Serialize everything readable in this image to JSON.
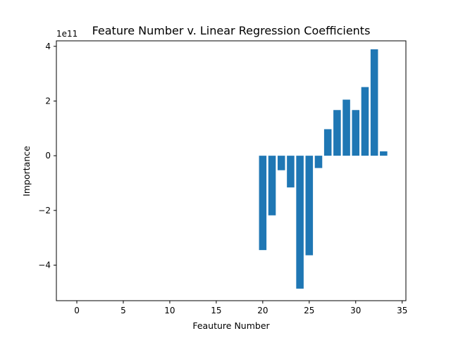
{
  "chart_data": {
    "type": "bar",
    "title": "Feature Number v. Linear Regression Coefficients",
    "xlabel": "Feauture Number",
    "ylabel": "Importance",
    "y_offset_label": "1e11",
    "y_scale": 100000000000,
    "xlim": [
      -2.2,
      35.4
    ],
    "ylim": [
      -5.3,
      4.2
    ],
    "xticks": [
      0,
      5,
      10,
      15,
      20,
      25,
      30,
      35
    ],
    "yticks": [
      -4,
      -2,
      0,
      2,
      4
    ],
    "ytick_labels": [
      "−4",
      "−2",
      "0",
      "2",
      "4"
    ],
    "grid": false,
    "bar_color": "#1f77b4",
    "x": [
      0,
      1,
      2,
      3,
      4,
      5,
      6,
      7,
      8,
      9,
      10,
      11,
      12,
      13,
      14,
      15,
      16,
      17,
      18,
      19,
      20,
      21,
      22,
      23,
      24,
      25,
      26,
      27,
      28,
      29,
      30,
      31,
      32,
      33
    ],
    "values": [
      0,
      0,
      0,
      0,
      0,
      0,
      0,
      0,
      0,
      0,
      0,
      0,
      0,
      0,
      0,
      0,
      0,
      0,
      0,
      0,
      -3.45,
      -2.18,
      -0.53,
      -1.16,
      -4.86,
      -3.64,
      -0.45,
      0.97,
      1.67,
      2.05,
      1.67,
      2.51,
      3.89,
      0.16
    ]
  }
}
